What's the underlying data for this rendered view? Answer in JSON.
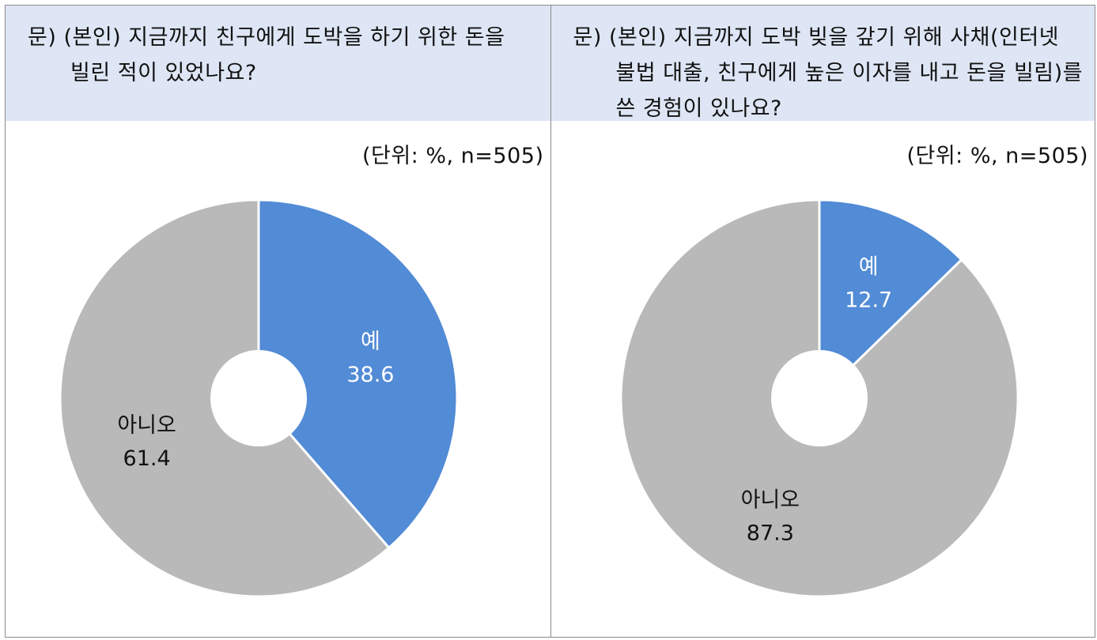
{
  "panels": [
    {
      "question_lines": [
        "문) (본인) 지금까지 친구에게 도박을 하기 위한 돈을",
        "빌린 적이 있었나요?"
      ],
      "unit": "(단위: %, n=505)"
    },
    {
      "question_lines": [
        "문) (본인) 지금까지 도박 빚을 갚기 위해 사채(인터넷",
        "불법 대출, 친구에게 높은 이자를 내고 돈을 빌림)를",
        "쓴 경험이 있나요?"
      ],
      "unit": "(단위: %, n=505)"
    }
  ],
  "chart_data": [
    {
      "type": "pie",
      "donut": true,
      "categories": [
        "예",
        "아니오"
      ],
      "values": [
        38.6,
        61.4
      ],
      "value_labels": [
        "38.6",
        "61.4"
      ],
      "colors": [
        "#528bd6",
        "#b9b9b9"
      ],
      "start": "12 o'clock, clockwise"
    },
    {
      "type": "pie",
      "donut": true,
      "categories": [
        "예",
        "아니오"
      ],
      "values": [
        12.7,
        87.3
      ],
      "value_labels": [
        "12.7",
        "87.3"
      ],
      "colors": [
        "#528bd6",
        "#b9b9b9"
      ],
      "start": "12 o'clock, clockwise"
    }
  ]
}
